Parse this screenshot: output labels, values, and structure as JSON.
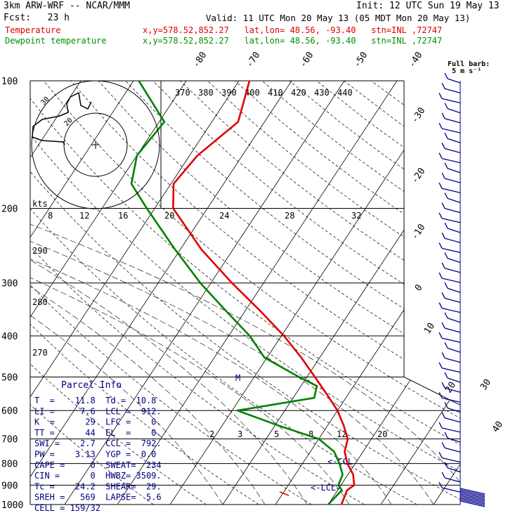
{
  "header": {
    "model": "3km ARW-WRF -- NCAR/MMM",
    "init": "Init: 12 UTC Sun 19 May 13",
    "fcst": "Fcst:   23 h",
    "valid": "Valid: 11 UTC Mon 20 May 13 (05 MDT Mon 20 May 13)",
    "temp_label": "Temperature",
    "temp_loc": "x,y=578.52,852.27   lat,lon= 48.56, -93.40   stn=INL ,72747",
    "dew_label": "Dewpoint temperature",
    "dew_loc": "x,y=578.52,852.27   lat,lon= 48.56, -93.40   stn=INL ,72747"
  },
  "colors": {
    "temperature": "#e00000",
    "dewpoint": "#008000",
    "wind": "#00008b",
    "parcel": "#000080"
  },
  "barb_key": {
    "line1": "Full barb:",
    "line2": "5 m s⁻¹"
  },
  "hodograph": {
    "units": "kts",
    "ring_labels": [
      "30",
      "20"
    ]
  },
  "chart_data": {
    "type": "skew-T log-p sounding",
    "pressure_axis_hPa": [
      100,
      200,
      300,
      400,
      500,
      600,
      700,
      800,
      900,
      1000
    ],
    "isotherm_labels_C": [
      "-80",
      "-70",
      "-60",
      "-50",
      "-40",
      "-30",
      "-20",
      "-10",
      "0",
      "10",
      "20",
      "30",
      "40"
    ],
    "theta_labels_K": [
      "370",
      "380",
      "390",
      "400",
      "410",
      "420",
      "430",
      "440"
    ],
    "moisture_labels": [
      "8",
      "12",
      "16",
      "20",
      "24",
      "28",
      "32"
    ],
    "mixing_ratio_labels": [
      "2",
      "3",
      "5",
      "8",
      "12",
      "20"
    ],
    "height_labels": [
      "290",
      "280",
      "270"
    ],
    "annotations": [
      "M",
      "<-CCL",
      "<-LCL"
    ],
    "temperature": [
      {
        "p": 1000,
        "t": 12.5
      },
      {
        "p": 925,
        "t": 11.8
      },
      {
        "p": 900,
        "t": 12.5
      },
      {
        "p": 850,
        "t": 11.0
      },
      {
        "p": 800,
        "t": 8.5
      },
      {
        "p": 750,
        "t": 6.5
      },
      {
        "p": 700,
        "t": 5.5
      },
      {
        "p": 650,
        "t": 3.0
      },
      {
        "p": 600,
        "t": 0.0
      },
      {
        "p": 550,
        "t": -4.0
      },
      {
        "p": 500,
        "t": -8.5
      },
      {
        "p": 450,
        "t": -13.5
      },
      {
        "p": 400,
        "t": -19.5
      },
      {
        "p": 350,
        "t": -27.0
      },
      {
        "p": 300,
        "t": -36.0
      },
      {
        "p": 250,
        "t": -46.0
      },
      {
        "p": 200,
        "t": -56.5
      },
      {
        "p": 175,
        "t": -59.5
      },
      {
        "p": 150,
        "t": -58.5
      },
      {
        "p": 125,
        "t": -55.0
      },
      {
        "p": 100,
        "t": -58.0
      }
    ],
    "dewpoint": [
      {
        "p": 1000,
        "t": 10.0
      },
      {
        "p": 925,
        "t": 10.8
      },
      {
        "p": 900,
        "t": 9.5
      },
      {
        "p": 850,
        "t": 9.0
      },
      {
        "p": 800,
        "t": 7.0
      },
      {
        "p": 750,
        "t": 4.5
      },
      {
        "p": 700,
        "t": 0.0
      },
      {
        "p": 650,
        "t": -9.5
      },
      {
        "p": 600,
        "t": -19.0
      },
      {
        "p": 560,
        "t": -6.0
      },
      {
        "p": 525,
        "t": -7.0
      },
      {
        "p": 500,
        "t": -11.5
      },
      {
        "p": 450,
        "t": -20.5
      },
      {
        "p": 400,
        "t": -26.0
      },
      {
        "p": 350,
        "t": -33.5
      },
      {
        "p": 300,
        "t": -42.0
      },
      {
        "p": 250,
        "t": -51.0
      },
      {
        "p": 200,
        "t": -61.5
      },
      {
        "p": 175,
        "t": -67.5
      },
      {
        "p": 150,
        "t": -70.0
      },
      {
        "p": 125,
        "t": -69.0
      },
      {
        "p": 100,
        "t": -79.0
      }
    ]
  },
  "parcel_info": {
    "title": "Parcel Info",
    "rows": [
      "T  =    11.8  Td =  10.8",
      "LI =     7.6  LCL =  912.",
      "K  =      29  LFC =    0.",
      "TT =      44  EL  =    0.",
      "SWI =    2.7  CCL =  792.",
      "PW =    3.13  YGP =  0.0",
      "CAPE =     0  SWEAT=  234",
      "CIN =      0  HWBZ= 3509.",
      "Tc =    24.2  SHEAR=  29.",
      "SREH =   569  LAPSE=  5.6",
      "CELL = 159/32"
    ]
  }
}
